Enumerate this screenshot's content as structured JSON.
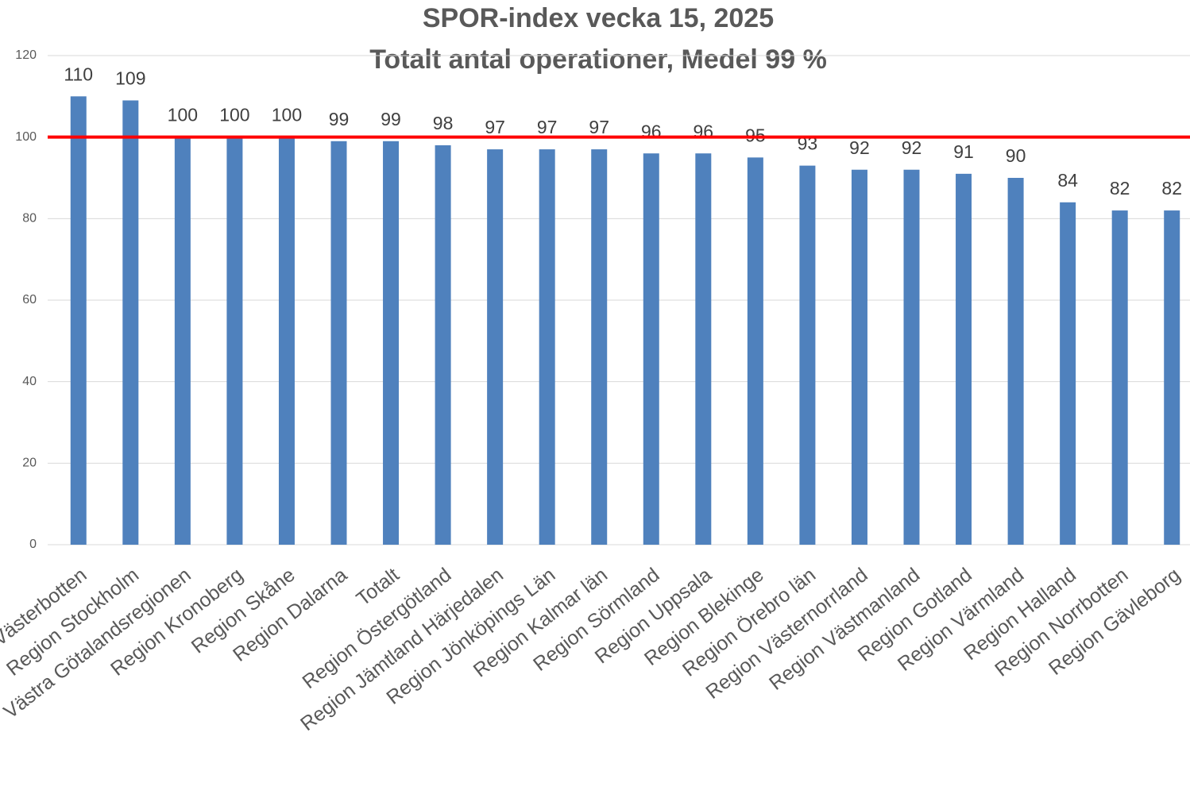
{
  "chart_data": {
    "type": "bar",
    "title": "SPOR-index vecka 15, 2025",
    "subtitle": "Totalt antal operationer, Medel 99 %",
    "categories": [
      "Region Västerbotten",
      "Region Stockholm",
      "Västra Götalandsregionen",
      "Region Kronoberg",
      "Region Skåne",
      "Region Dalarna",
      "Totalt",
      "Region Östergötland",
      "Region Jämtland Härjedalen",
      "Region Jönköpings Län",
      "Region Kalmar län",
      "Region Sörmland",
      "Region Uppsala",
      "Region Blekinge",
      "Region Örebro län",
      "Region Västernorrland",
      "Region Västmanland",
      "Region Gotland",
      "Region Värmland",
      "Region Halland",
      "Region Norrbotten",
      "Region Gävleborg"
    ],
    "values": [
      110,
      109,
      100,
      100,
      100,
      99,
      99,
      98,
      97,
      97,
      97,
      96,
      96,
      95,
      93,
      92,
      92,
      91,
      90,
      84,
      82,
      82
    ],
    "color": "#4f81bd",
    "ylim": [
      0,
      120
    ],
    "yticks": [
      0,
      20,
      40,
      60,
      80,
      100,
      120
    ],
    "grid": true,
    "reference_line": {
      "value": 100,
      "color": "#ff0000"
    }
  }
}
